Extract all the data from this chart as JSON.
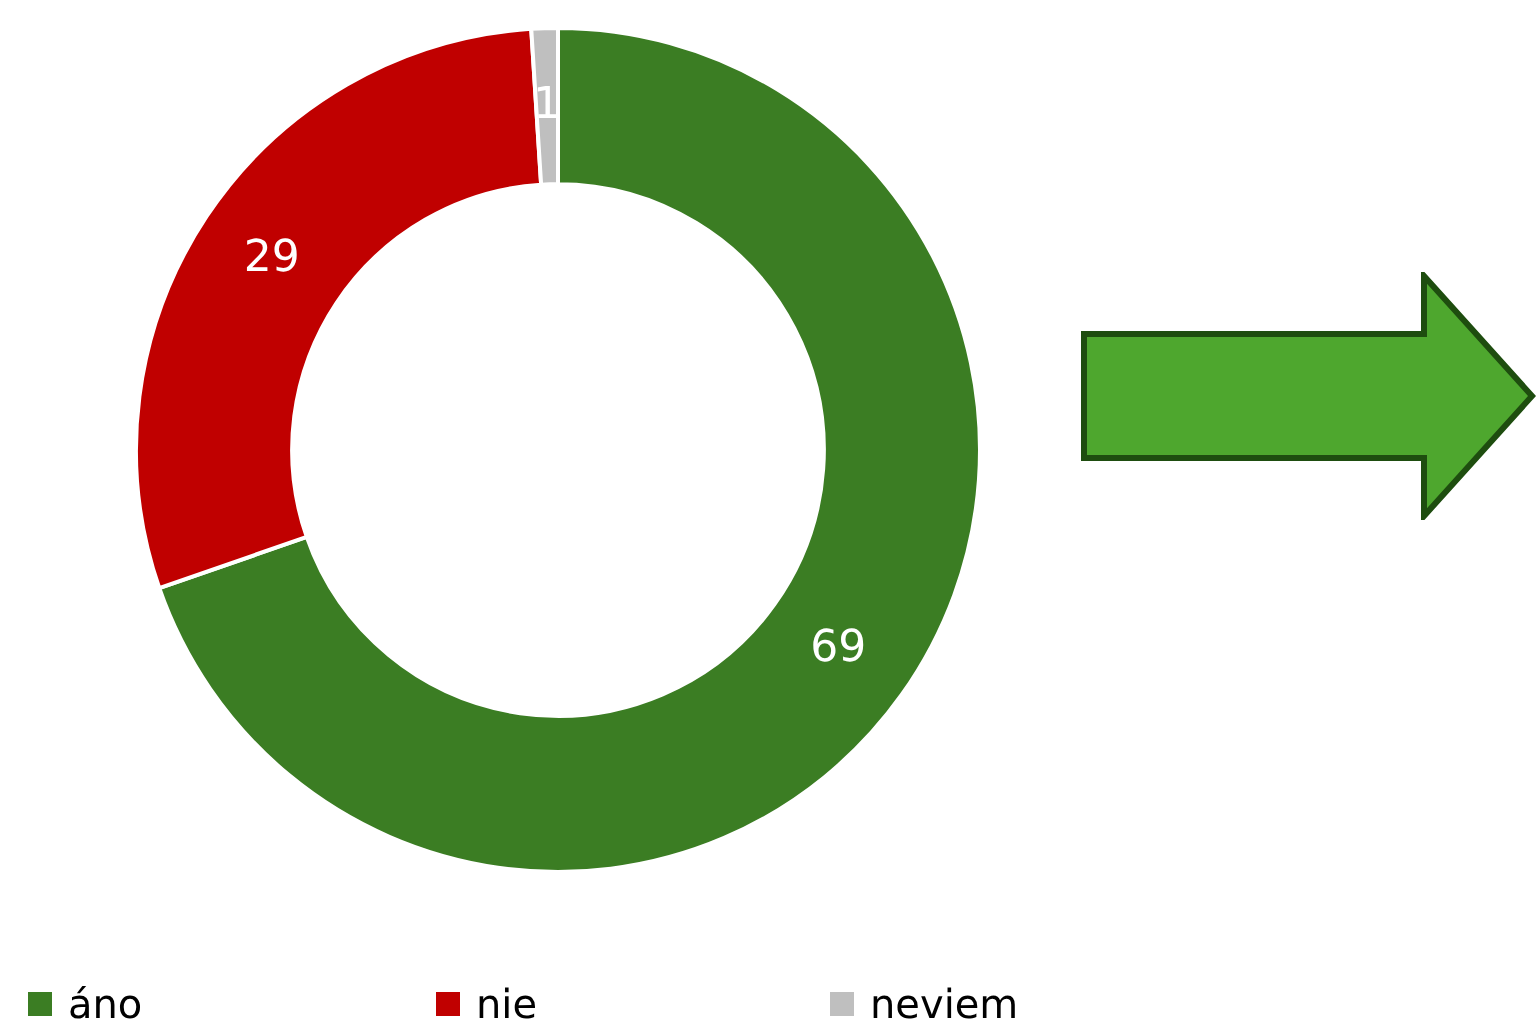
{
  "chart_data": {
    "type": "donut",
    "categories": [
      "áno",
      "nie",
      "neviem"
    ],
    "values": [
      69,
      29,
      1
    ],
    "colors": [
      "#3b7d23",
      "#c00000",
      "#bfbfbf"
    ],
    "data_labels": true,
    "legend": "bottom"
  }
}
